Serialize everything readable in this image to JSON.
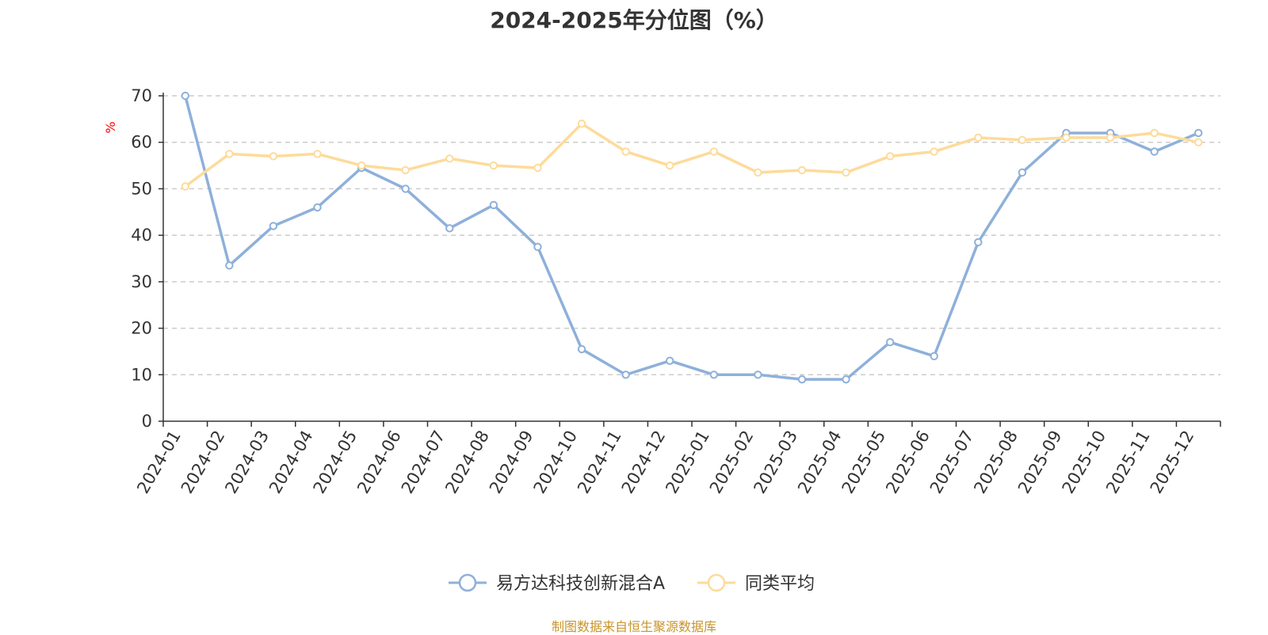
{
  "chart_data": {
    "type": "line",
    "title": "2024-2025年分位图（%）",
    "ylabel": "%",
    "xlabel": "",
    "ylim": [
      0,
      70
    ],
    "yticks": [
      0,
      10,
      20,
      30,
      40,
      50,
      60,
      70
    ],
    "grid": true,
    "legend_position": "bottom-center",
    "categories": [
      "2024-01",
      "2024-02",
      "2024-03",
      "2024-04",
      "2024-05",
      "2024-06",
      "2024-07",
      "2024-08",
      "2024-09",
      "2024-10",
      "2024-11",
      "2024-12",
      "2025-01",
      "2025-02",
      "2025-03",
      "2025-04",
      "2025-05",
      "2025-06",
      "2025-07",
      "2025-08",
      "2025-09",
      "2025-10",
      "2025-11",
      "2025-12"
    ],
    "series": [
      {
        "name": "易方达科技创新混合A",
        "color": "#8eb0da",
        "values": [
          70.0,
          33.5,
          42.0,
          46.0,
          54.5,
          50.0,
          41.5,
          46.5,
          37.5,
          15.5,
          10.0,
          13.0,
          10.0,
          10.0,
          9.0,
          9.0,
          17.0,
          14.0,
          38.5,
          53.5,
          62.0,
          62.0,
          58.0,
          62.0
        ]
      },
      {
        "name": "同类平均",
        "color": "#fddb9b",
        "values": [
          50.5,
          57.5,
          57.0,
          57.5,
          55.0,
          54.0,
          56.5,
          55.0,
          54.5,
          64.0,
          58.0,
          55.0,
          58.0,
          53.5,
          54.0,
          53.5,
          57.0,
          58.0,
          61.0,
          60.5,
          61.0,
          61.0,
          62.0,
          60.0
        ]
      }
    ],
    "source": "制图数据来自恒生聚源数据库"
  },
  "colors": {
    "axis": "#333333",
    "grid": "#cccccc",
    "ylabel": "#ff0000",
    "source": "#c8942a"
  }
}
